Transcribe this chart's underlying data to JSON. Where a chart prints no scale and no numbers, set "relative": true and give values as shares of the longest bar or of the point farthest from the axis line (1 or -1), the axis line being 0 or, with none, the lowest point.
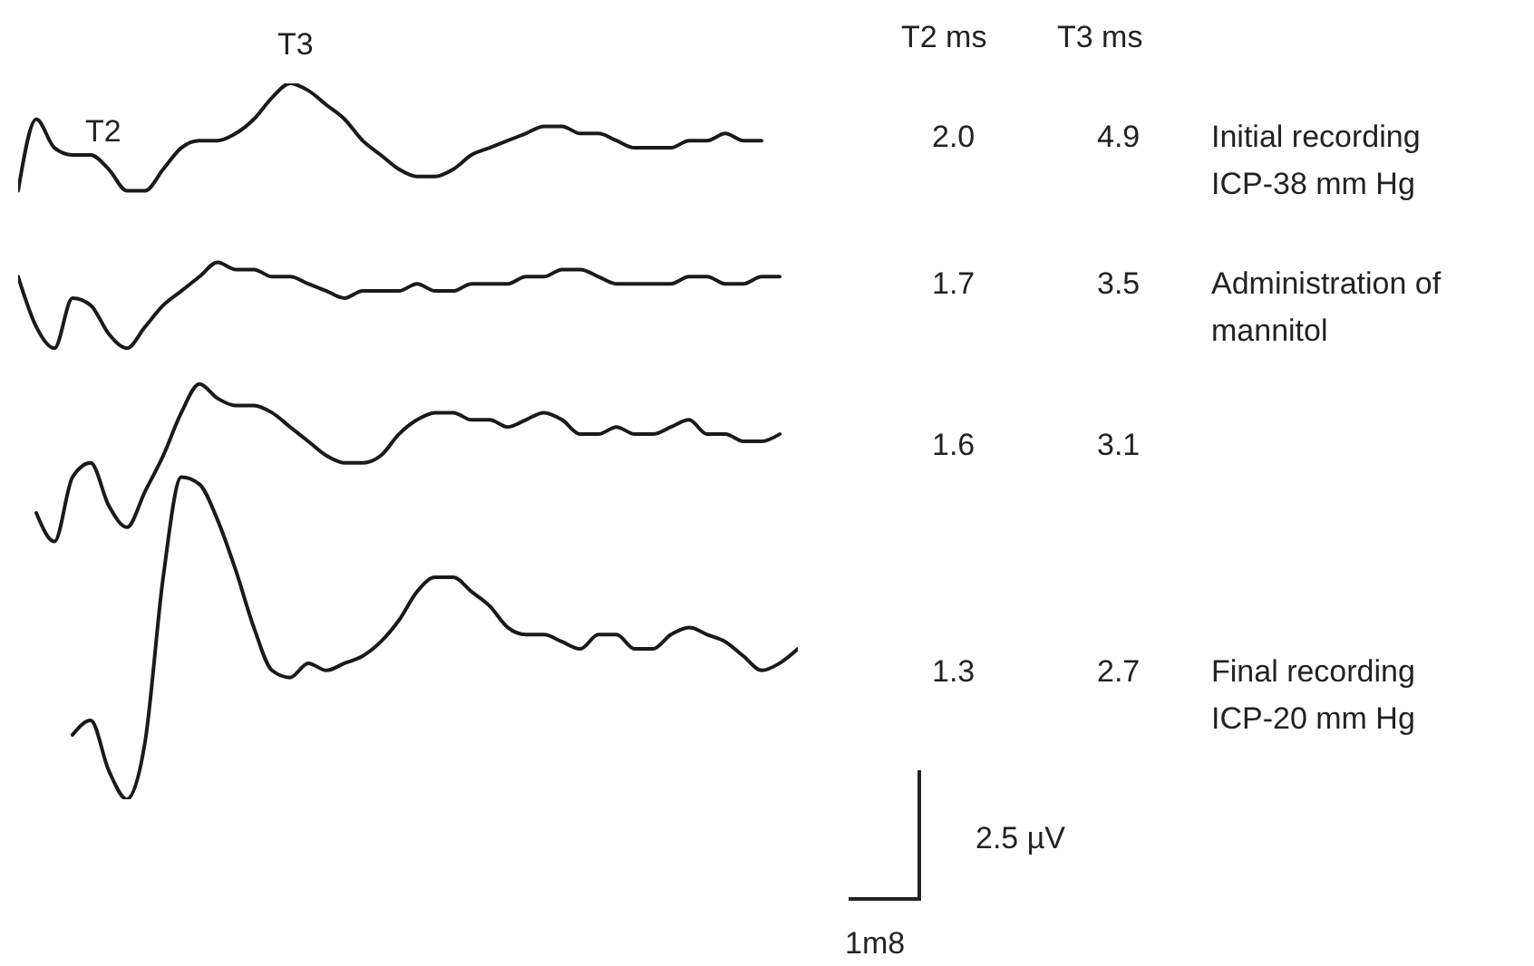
{
  "chart_data": {
    "type": "line",
    "relative": true,
    "categories": [
      null,
      null,
      null,
      null,
      null,
      null,
      null,
      null,
      null,
      null,
      null,
      null,
      null,
      null,
      null,
      null,
      null,
      null,
      null,
      null,
      null,
      null,
      null,
      null,
      null,
      null,
      null,
      null,
      null,
      null,
      null,
      null,
      null,
      null,
      null,
      null,
      null,
      null,
      null,
      null,
      null,
      null,
      null,
      null
    ],
    "series": [
      {
        "color": "#1a1a1a",
        "values": [
          0.85,
          0.95,
          0.91,
          0.9,
          0.9,
          0.88,
          0.85,
          0.85,
          0.88,
          0.91,
          0.92,
          0.92,
          0.93,
          0.95,
          0.98,
          1,
          0.99,
          0.97,
          0.95,
          0.92,
          0.9,
          0.88,
          0.87,
          0.87,
          0.88,
          0.9,
          0.91,
          0.92,
          0.93,
          0.94,
          0.94,
          0.93,
          0.93,
          0.92,
          0.91,
          0.91,
          0.91,
          0.92,
          0.92,
          0.93,
          0.92,
          0.92,
          null,
          null
        ]
      },
      {
        "color": "#1a1a1a",
        "values": [
          0.73,
          0.66,
          0.63,
          0.7,
          0.69,
          0.65,
          0.63,
          0.66,
          0.69,
          0.71,
          0.73,
          0.75,
          0.74,
          0.74,
          0.73,
          0.73,
          0.72,
          0.71,
          0.7,
          0.71,
          0.71,
          0.71,
          0.72,
          0.71,
          0.71,
          0.72,
          0.72,
          0.72,
          0.73,
          0.73,
          0.74,
          0.74,
          0.73,
          0.72,
          0.72,
          0.72,
          0.72,
          0.73,
          0.73,
          0.72,
          0.72,
          0.73,
          0.73,
          null
        ]
      },
      {
        "color": "#1a1a1a",
        "values": [
          null,
          0.4,
          0.36,
          0.45,
          0.47,
          0.41,
          0.38,
          0.43,
          0.48,
          0.54,
          0.58,
          0.56,
          0.55,
          0.55,
          0.54,
          0.52,
          0.5,
          0.48,
          0.47,
          0.47,
          0.48,
          0.51,
          0.53,
          0.54,
          0.54,
          0.53,
          0.53,
          0.52,
          0.53,
          0.54,
          0.53,
          0.51,
          0.51,
          0.52,
          0.51,
          0.51,
          0.52,
          0.53,
          0.51,
          0.51,
          0.5,
          0.5,
          0.51,
          null
        ]
      },
      {
        "color": "#1a1a1a",
        "values": [
          null,
          null,
          null,
          0.09,
          0.11,
          0.04,
          0,
          0.08,
          0.31,
          0.45,
          0.44,
          0.39,
          0.32,
          0.24,
          0.18,
          0.17,
          0.19,
          0.18,
          0.19,
          0.2,
          0.22,
          0.25,
          0.29,
          0.31,
          0.31,
          0.29,
          0.27,
          0.24,
          0.23,
          0.23,
          0.22,
          0.21,
          0.23,
          0.23,
          0.21,
          0.21,
          0.23,
          0.24,
          0.23,
          0.22,
          0.2,
          0.18,
          0.19,
          0.21
        ]
      }
    ],
    "annotations": [
      "T3",
      "T2",
      "T2 ms",
      "T3 ms",
      "2.0",
      "4.9",
      "Initial recording ICP-38 mm Hg",
      "1.7",
      "3.5",
      "Administration of mannitol",
      "1.6",
      "3.1",
      "1.3",
      "2.7",
      "Final recording ICP-20 mm Hg",
      "2.5 µV",
      "1m8"
    ]
  }
}
